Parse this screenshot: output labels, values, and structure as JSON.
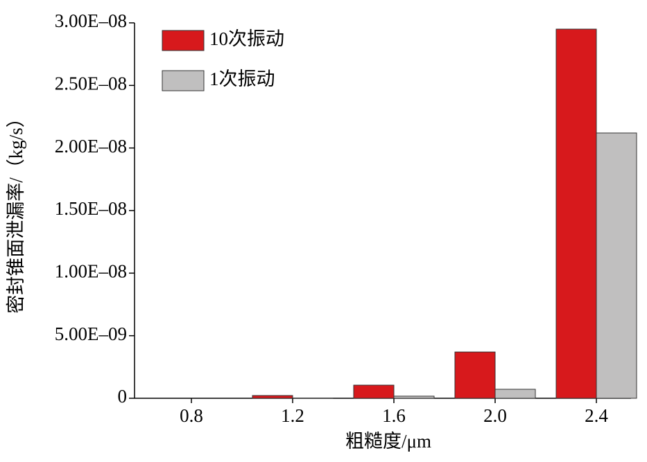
{
  "chart_data": {
    "type": "bar",
    "x_label": "粗糙度/μm",
    "y_label": "密封锥面泄漏率/（kg/s）",
    "categories": [
      "0.8",
      "1.2",
      "1.6",
      "2.0",
      "2.4"
    ],
    "series": [
      {
        "name": "10次振动",
        "color": "#d7191c",
        "values": [
          0,
          2.2e-10,
          1.05e-09,
          3.7e-09,
          2.95e-08
        ]
      },
      {
        "name": "1次振动",
        "color": "#c0bfbf",
        "values": [
          0,
          1e-11,
          1.7e-10,
          7.2e-10,
          2.12e-08
        ]
      }
    ],
    "ylim": [
      0,
      3e-08
    ],
    "yticks": [
      0,
      {
        "value": 5e-09,
        "label": "5.00E–09"
      },
      {
        "value": 1e-08,
        "label": "1.00E–08"
      },
      {
        "value": 1.5e-08,
        "label": "1.50E–08"
      },
      {
        "value": 2e-08,
        "label": "2.00E–08"
      },
      {
        "value": 2.5e-08,
        "label": "2.50E–08"
      },
      {
        "value": 3e-08,
        "label": "3.00E–08"
      }
    ],
    "legend": "upper-left"
  }
}
